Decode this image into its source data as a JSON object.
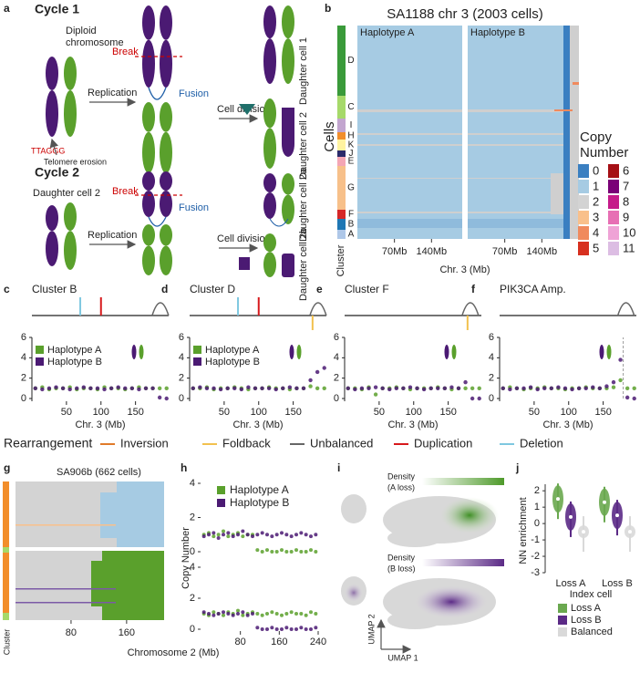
{
  "panel_a": {
    "label": "a",
    "cycle1": "Cycle 1",
    "diploid_1": "Diploid",
    "diploid_2": "chromosome",
    "replication_1": "Replication",
    "break_1": "Break",
    "fusion_1": "Fusion",
    "division_1": "Cell division",
    "daughter_1": "Daughter cell 1",
    "daughter_2": "Daughter cell 2",
    "telomere_seq": "TTAGGG",
    "telomere": "Telomere erosion",
    "cycle2": "Cycle 2",
    "start_2": "Daughter cell 2",
    "replication_2": "Replication",
    "break_2": "Break",
    "fusion_2": "Fusion",
    "division_2": "Cell division",
    "daughter_2a": "Daughter cell 2a",
    "daughter_2b": "Daughter cell 2b"
  },
  "panel_b": {
    "label": "b",
    "title": "SA1188 chr 3 (2003 cells)",
    "haplotypes": [
      "Haplotype A",
      "Haplotype B"
    ],
    "y_label": "Cells",
    "cluster_label": "Cluster",
    "clusters": [
      "D",
      "C",
      "I",
      "H",
      "K",
      "J",
      "E",
      "G",
      "F",
      "B",
      "A"
    ],
    "xlim": [
      0,
      198
    ],
    "xticks": [
      {
        "value": 70,
        "label": "70Mb"
      },
      {
        "value": 140,
        "label": "140Mb"
      }
    ],
    "x_label": "Chr. 3 (Mb)",
    "legend_title_1": "Copy",
    "legend_title_2": "Number",
    "copy_numbers": [
      0,
      1,
      2,
      3,
      4,
      5,
      6,
      7,
      8,
      9,
      10,
      11
    ],
    "copy_colors": [
      "#3a7fc1",
      "#a6cbe3",
      "#d3d3d3",
      "#f9c08b",
      "#f08a5d",
      "#d7301f",
      "#a50f15",
      "#7a0177",
      "#c51b8a",
      "#e76fb4",
      "#efa3d6",
      "#dcbde3"
    ]
  },
  "chr3_axes": {
    "xlim": [
      0,
      198
    ],
    "xticks": [
      50,
      100,
      150
    ],
    "ylim": [
      0,
      6
    ],
    "yticks": [
      0,
      2,
      4,
      6
    ],
    "x_label": "Chr. 3 (Mb)",
    "x": [
      5,
      15,
      25,
      35,
      45,
      55,
      65,
      75,
      85,
      95,
      105,
      115,
      125,
      135,
      145,
      155,
      165,
      175,
      185,
      195
    ]
  },
  "rearrangement_panels": [
    {
      "label": "c",
      "title": "Cluster B",
      "events": [
        {
          "type": "Deletion",
          "position": 70
        },
        {
          "type": "Duplication",
          "position": 100
        },
        {
          "type": "Unbalanced",
          "position": 186
        }
      ],
      "series": [
        {
          "name": "Haplotype A",
          "color": "#5aa02c",
          "values": [
            1.0,
            1.1,
            0.9,
            1.0,
            1.0,
            1.1,
            0.9,
            1.0,
            1.0,
            0.9,
            1.1,
            1.0,
            1.0,
            0.9,
            1.0,
            1.1,
            1.0,
            1.0,
            1.0,
            1.0
          ]
        },
        {
          "name": "Haplotype B",
          "color": "#4b1a73",
          "values": [
            1.0,
            0.9,
            1.0,
            1.1,
            1.0,
            0.9,
            1.0,
            1.1,
            1.0,
            1.0,
            0.9,
            1.0,
            1.1,
            1.0,
            1.0,
            0.9,
            1.0,
            1.0,
            0.1,
            0.0
          ]
        }
      ]
    },
    {
      "label": "d",
      "title": "Cluster D",
      "events": [
        {
          "type": "Deletion",
          "position": 70
        },
        {
          "type": "Duplication",
          "position": 100
        },
        {
          "type": "Foldback",
          "position": 178
        },
        {
          "type": "Unbalanced",
          "position": 186
        }
      ],
      "series": [
        {
          "name": "Haplotype A",
          "color": "#5aa02c",
          "values": [
            1.0,
            1.0,
            1.1,
            0.9,
            1.0,
            1.0,
            1.1,
            1.0,
            0.9,
            1.0,
            1.0,
            1.1,
            1.0,
            1.0,
            0.9,
            1.0,
            1.0,
            1.2,
            1.0,
            1.0
          ]
        },
        {
          "name": "Haplotype B",
          "color": "#4b1a73",
          "values": [
            1.0,
            1.1,
            1.0,
            1.0,
            0.9,
            1.0,
            1.0,
            0.9,
            1.1,
            1.0,
            1.0,
            1.0,
            0.9,
            1.0,
            1.1,
            1.0,
            1.0,
            1.8,
            2.6,
            3.0
          ]
        }
      ]
    },
    {
      "label": "e",
      "title": "Cluster F",
      "events": [
        {
          "type": "Foldback",
          "position": 178
        },
        {
          "type": "Unbalanced",
          "position": 182
        }
      ],
      "series": [
        {
          "name": "Haplotype A",
          "color": "#5aa02c",
          "values": [
            1.0,
            1.0,
            0.9,
            1.1,
            0.4,
            1.0,
            1.0,
            1.1,
            1.0,
            0.9,
            1.0,
            1.0,
            1.0,
            1.1,
            1.0,
            0.9,
            1.0,
            1.0,
            1.0,
            1.0
          ]
        },
        {
          "name": "Haplotype B",
          "color": "#4b1a73",
          "values": [
            1.0,
            0.9,
            1.0,
            1.0,
            1.1,
            1.0,
            0.9,
            1.0,
            1.0,
            1.1,
            1.0,
            0.9,
            1.0,
            1.0,
            1.0,
            1.1,
            1.0,
            1.6,
            0.0,
            0.0
          ]
        }
      ]
    },
    {
      "label": "f",
      "title": "PIK3CA Amp.",
      "marker_position": 179,
      "events": [
        {
          "type": "Unbalanced",
          "position": 183
        }
      ],
      "series": [
        {
          "name": "Haplotype A",
          "color": "#5aa02c",
          "values": [
            1.0,
            1.1,
            1.0,
            0.9,
            1.0,
            1.0,
            1.1,
            1.0,
            1.0,
            0.9,
            1.0,
            1.0,
            1.1,
            1.0,
            1.0,
            1.0,
            1.1,
            1.8,
            1.0,
            1.0
          ]
        },
        {
          "name": "Haplotype B",
          "color": "#4b1a73",
          "values": [
            1.0,
            0.9,
            1.0,
            1.0,
            1.1,
            0.9,
            1.0,
            1.0,
            1.1,
            1.0,
            0.9,
            1.0,
            1.0,
            1.1,
            1.0,
            1.2,
            1.6,
            3.8,
            0.1,
            0.0
          ]
        }
      ]
    }
  ],
  "rearrangement_legend": {
    "title": "Rearrangement",
    "types": [
      {
        "name": "Inversion",
        "color": "#e07b2a"
      },
      {
        "name": "Foldback",
        "color": "#f2c14e"
      },
      {
        "name": "Unbalanced",
        "color": "#666666"
      },
      {
        "name": "Duplication",
        "color": "#d7191c"
      },
      {
        "name": "Deletion",
        "color": "#7fc8e0"
      }
    ]
  },
  "panel_g": {
    "label": "g",
    "title": "SA906b (662 cells)",
    "xlim": [
      0,
      214
    ],
    "xticks": [
      80,
      160
    ],
    "cluster_label": "Cluster",
    "x_label": "Chromosome 2 (Mb)"
  },
  "panel_h": {
    "label": "h",
    "y_label": "Copy Number",
    "xlim": [
      0,
      240
    ],
    "xticks": [
      80,
      160,
      240
    ],
    "ylim": [
      0,
      4
    ],
    "yticks": [
      0,
      2,
      4
    ],
    "x": [
      5,
      15,
      25,
      35,
      45,
      55,
      65,
      75,
      85,
      95,
      105,
      115,
      125,
      135,
      145,
      155,
      165,
      175,
      185,
      195,
      205,
      215,
      225,
      235
    ],
    "plots": [
      {
        "series": [
          {
            "name": "Haplotype A",
            "color": "#5aa02c",
            "values": [
              1.0,
              1.1,
              0.9,
              1.0,
              1.2,
              0.9,
              1.0,
              1.1,
              0.9,
              1.0,
              1.0,
              0.1,
              0.0,
              0.1,
              0.0,
              0.0,
              0.1,
              0.0,
              0.0,
              0.1,
              0.0,
              0.0,
              0.1,
              0.0
            ]
          },
          {
            "name": "Haplotype B",
            "color": "#4b1a73",
            "values": [
              0.9,
              1.0,
              1.1,
              0.8,
              1.0,
              1.1,
              0.9,
              1.0,
              1.2,
              1.0,
              0.9,
              1.0,
              1.1,
              1.0,
              0.9,
              1.0,
              1.1,
              1.0,
              0.9,
              1.0,
              1.1,
              1.0,
              0.9,
              1.0
            ]
          }
        ]
      },
      {
        "series": [
          {
            "name": "Haplotype A",
            "color": "#5aa02c",
            "values": [
              1.0,
              0.9,
              1.1,
              1.0,
              0.9,
              1.1,
              1.0,
              1.2,
              0.9,
              1.0,
              1.1,
              1.0,
              0.9,
              1.0,
              1.1,
              1.0,
              0.9,
              1.0,
              1.1,
              1.0,
              1.0,
              0.9,
              1.1,
              1.0
            ]
          },
          {
            "name": "Haplotype B",
            "color": "#4b1a73",
            "values": [
              1.1,
              1.0,
              0.9,
              1.0,
              1.1,
              1.0,
              0.9,
              1.0,
              1.1,
              0.9,
              1.0,
              0.1,
              0.0,
              0.0,
              0.1,
              0.0,
              0.0,
              0.1,
              0.0,
              0.0,
              0.1,
              0.0,
              0.0,
              0.1
            ]
          }
        ]
      }
    ]
  },
  "panel_i": {
    "label": "i",
    "density_a_1": "Density",
    "density_a_2": "(A loss)",
    "density_b_1": "Density",
    "density_b_2": "(B loss)",
    "umap_x": "UMAP 1",
    "umap_y": "UMAP 2"
  },
  "panel_j": {
    "label": "j",
    "y_label": "NN enrichment",
    "x_label": "Index cell",
    "categories": [
      "Loss A",
      "Loss B"
    ],
    "ylim": [
      -3,
      2.4
    ],
    "yticks": [
      -3,
      -2,
      -1,
      0,
      1,
      2
    ],
    "series": [
      {
        "name": "Loss A",
        "color": "#6aa84f",
        "values": [
          1.5,
          1.3
        ]
      },
      {
        "name": "Loss B",
        "color": "#5b2a86",
        "values": [
          0.4,
          0.5
        ]
      },
      {
        "name": "Balanced",
        "color": "#d9d9d9",
        "values": [
          -0.5,
          -0.5
        ]
      }
    ]
  }
}
